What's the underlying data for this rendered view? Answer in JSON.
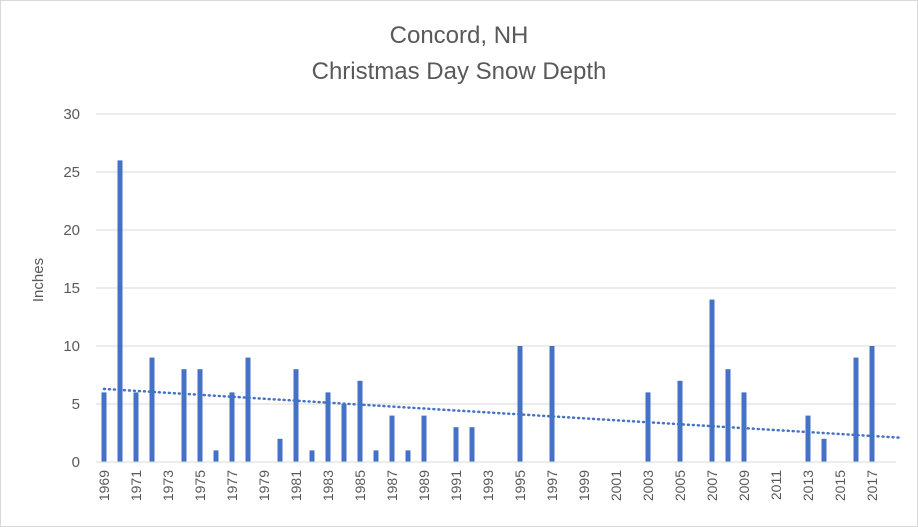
{
  "chart_data": {
    "type": "bar",
    "title": "Concord, NH",
    "subtitle": "Christmas Day Snow Depth",
    "xlabel": "",
    "ylabel": "Inches",
    "ylim": [
      0,
      30
    ],
    "yticks": [
      0,
      5,
      10,
      15,
      20,
      25,
      30
    ],
    "grid": true,
    "legend": "none",
    "colors": {
      "bar": "#4472c4",
      "trend": "#4472c4",
      "grid": "#d9d9d9",
      "text": "#595959"
    },
    "categories": [
      "1969",
      "1970",
      "1971",
      "1972",
      "1973",
      "1974",
      "1975",
      "1976",
      "1977",
      "1978",
      "1979",
      "1980",
      "1981",
      "1982",
      "1983",
      "1984",
      "1985",
      "1986",
      "1987",
      "1988",
      "1989",
      "1990",
      "1991",
      "1992",
      "1993",
      "1994",
      "1995",
      "1996",
      "1997",
      "1998",
      "1999",
      "2000",
      "2001",
      "2002",
      "2003",
      "2004",
      "2005",
      "2006",
      "2007",
      "2008",
      "2009",
      "2010",
      "2011",
      "2012",
      "2013",
      "2014",
      "2015",
      "2016",
      "2017",
      "2018"
    ],
    "xtick_labels": [
      "1969",
      "1971",
      "1973",
      "1975",
      "1977",
      "1979",
      "1981",
      "1983",
      "1985",
      "1987",
      "1989",
      "1991",
      "1993",
      "1995",
      "1997",
      "1999",
      "2001",
      "2003",
      "2005",
      "2007",
      "2009",
      "2011",
      "2013",
      "2015",
      "2017"
    ],
    "series": [
      {
        "name": "Snow Depth",
        "values": [
          6,
          26,
          6,
          9,
          0,
          8,
          8,
          1,
          6,
          9,
          0,
          2,
          8,
          1,
          6,
          5,
          7,
          1,
          4,
          1,
          4,
          0,
          3,
          3,
          0,
          0,
          10,
          0,
          10,
          0,
          0,
          0,
          0,
          0,
          6,
          0,
          7,
          0,
          14,
          8,
          6,
          0,
          0,
          0,
          4,
          2,
          0,
          9,
          10,
          0
        ]
      }
    ],
    "trendline": {
      "type": "linear",
      "style": "dotted",
      "start": 6.3,
      "end": 2.1
    }
  }
}
